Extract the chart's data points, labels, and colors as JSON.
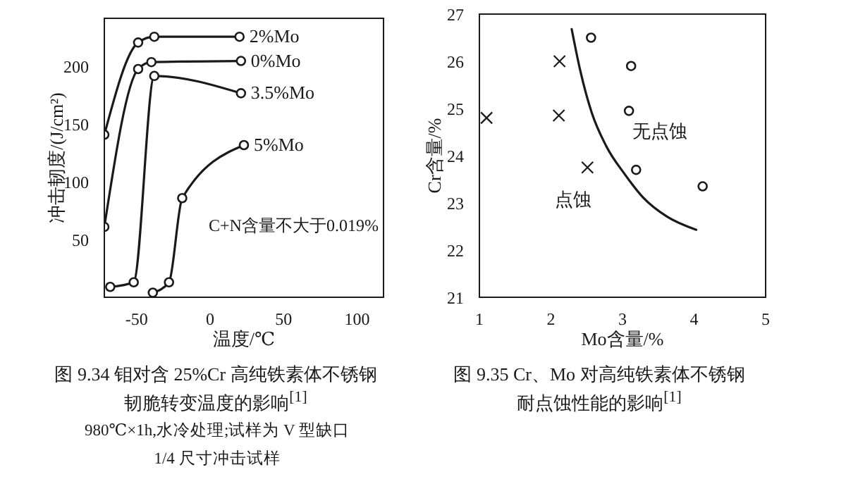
{
  "chart_data": [
    {
      "type": "line",
      "title": "图 9.34 钼对含 25%Cr 高纯铁素体不锈钢韧脆转变温度的影响$^{[1]}$",
      "xlabel": "温度/℃",
      "ylabel": "冲击韧度/(J/cm²)",
      "annotations": [
        "C+N含量不大于0.019%",
        "980℃×1h,水冷处理;试样为 V 型缺口 1/4 尺寸冲击试样"
      ],
      "xlim": [
        -72,
        118
      ],
      "xticks": [
        -50,
        0,
        50,
        100
      ],
      "ylim": [
        0,
        242
      ],
      "yticks": [
        50,
        100,
        150,
        200
      ],
      "marker": "circle",
      "line_style": "solid",
      "series": [
        {
          "name": "2%Mo",
          "color": "#1a1a1a",
          "x": [
            -72,
            -49,
            -38,
            20
          ],
          "values": [
            141,
            221,
            226,
            226
          ]
        },
        {
          "name": "0%Mo",
          "color": "#1a1a1a",
          "x": [
            -72,
            -49,
            -40,
            21
          ],
          "values": [
            61,
            198,
            204,
            205
          ]
        },
        {
          "name": "3.5%Mo",
          "color": "#1a1a1a",
          "x": [
            -68,
            -52,
            -38,
            21
          ],
          "values": [
            9,
            13,
            192,
            177
          ]
        },
        {
          "name": "5%Mo",
          "color": "#1a1a1a",
          "x": [
            -39,
            -28,
            -19,
            23
          ],
          "values": [
            4,
            13,
            86,
            132
          ]
        }
      ]
    },
    {
      "type": "scatter",
      "title": "图 9.35 Cr、Mo 对高纯铁素体不锈钢耐点蚀性能的影响$^{[1]}$",
      "xlabel": "Mo含量/%",
      "ylabel": "Cr含量/%",
      "xlim": [
        1,
        5
      ],
      "xticks": [
        1,
        2,
        3,
        4,
        5
      ],
      "ylim": [
        21,
        27
      ],
      "yticks": [
        21,
        22,
        23,
        24,
        25,
        26,
        27
      ],
      "series": [
        {
          "name": "点蚀",
          "marker": "cross",
          "color": "#1a1a1a",
          "x": [
            1.1,
            2.12,
            2.11,
            2.51
          ],
          "values": [
            24.8,
            26.0,
            24.85,
            23.75
          ]
        },
        {
          "name": "无点蚀",
          "marker": "circle",
          "color": "#1a1a1a",
          "x": [
            2.56,
            3.12,
            3.09,
            3.19,
            4.12
          ],
          "values": [
            26.5,
            25.9,
            24.95,
            23.7,
            23.35
          ]
        },
        {
          "type": "line",
          "marker": "none",
          "line_style": "solid",
          "color": "#1a1a1a",
          "x": [
            2.29,
            2.41,
            2.57,
            2.77,
            3.03,
            3.29,
            3.62,
            4.03
          ],
          "values": [
            26.68,
            25.8,
            24.91,
            24.21,
            23.61,
            23.11,
            22.71,
            22.43
          ]
        }
      ]
    }
  ]
}
